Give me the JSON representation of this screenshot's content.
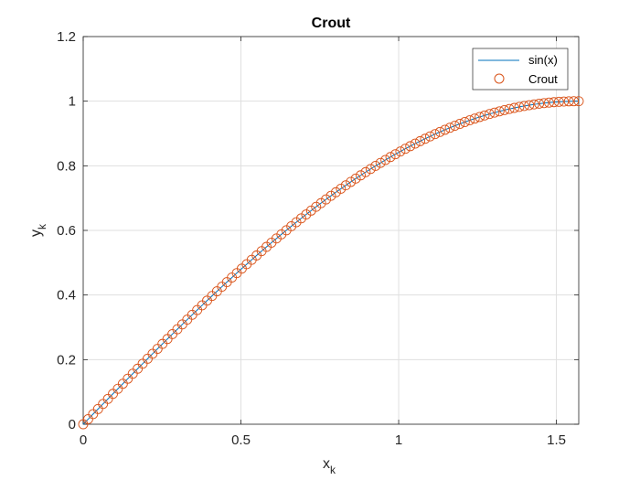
{
  "chart_data": {
    "type": "line",
    "title": "Crout",
    "xlabel": {
      "main": "x",
      "sub": "k"
    },
    "ylabel": {
      "main": "y",
      "sub": "k"
    },
    "xlim": [
      0,
      1.5708
    ],
    "ylim": [
      0,
      1.2
    ],
    "grid": true,
    "legend_placement": "top-right",
    "x_ticks": [
      0,
      0.5,
      1,
      1.5
    ],
    "x_tick_labels": [
      "0",
      "0.5",
      "1",
      "1.5"
    ],
    "y_ticks": [
      0,
      0.2,
      0.4,
      0.6,
      0.8,
      1,
      1.2
    ],
    "y_tick_labels": [
      "0",
      "0.2",
      "0.4",
      "0.6",
      "0.8",
      "1",
      "1.2"
    ],
    "series": [
      {
        "name": "sin(x)",
        "style": "line",
        "color": "#0072BD",
        "function": "sin",
        "x_range": [
          0,
          1.5708
        ],
        "samples": 200
      },
      {
        "name": "Crout",
        "style": "markers",
        "marker": "circle",
        "color": "#D95319",
        "x_range": [
          0,
          1.5708
        ],
        "num_points": 101
      }
    ]
  }
}
